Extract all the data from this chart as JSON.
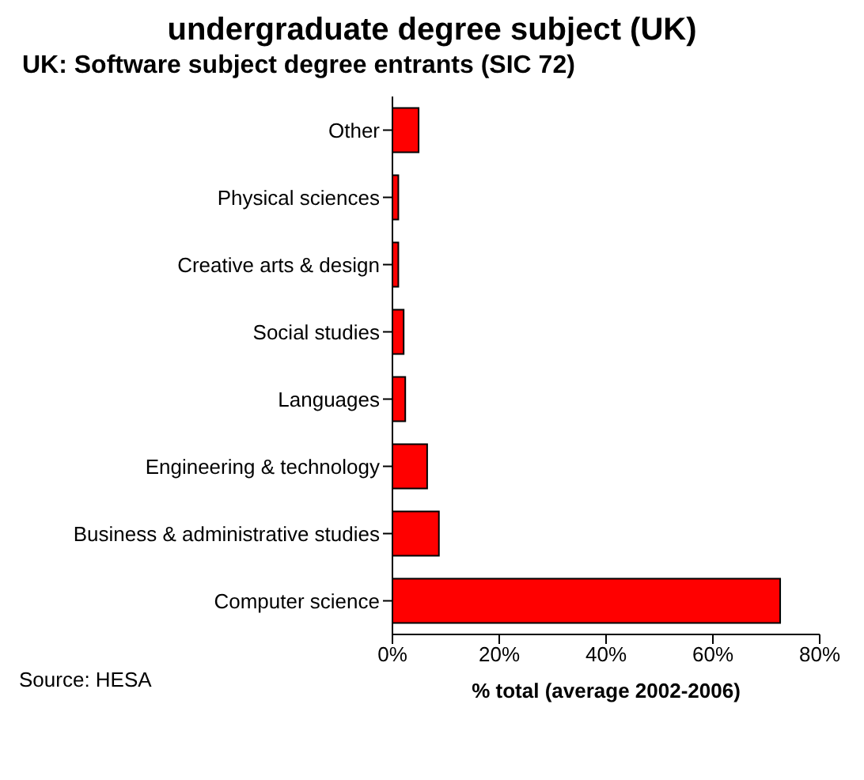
{
  "chart_data": {
    "type": "bar",
    "orientation": "horizontal",
    "title": "undergraduate degree subject (UK)",
    "subtitle": "UK: Software subject degree entrants (SIC 72)",
    "xlabel": "% total (average 2002-2006)",
    "categories": [
      "Other",
      "Physical sciences",
      "Creative arts & design",
      "Social studies",
      "Languages",
      "Engineering & technology",
      "Business & administrative studies",
      "Computer science"
    ],
    "values": [
      4.9,
      1.1,
      1.1,
      2.1,
      2.4,
      6.5,
      8.7,
      72.6
    ],
    "color": "#ff0000",
    "xlim": [
      0,
      80
    ],
    "xticks": [
      {
        "value": 0,
        "label": "0%"
      },
      {
        "value": 20,
        "label": "20%"
      },
      {
        "value": 40,
        "label": "40%"
      },
      {
        "value": 60,
        "label": "60%"
      },
      {
        "value": 80,
        "label": "80%"
      }
    ],
    "grid": false,
    "legend": false,
    "annotations": [
      "Source: HESA"
    ]
  }
}
